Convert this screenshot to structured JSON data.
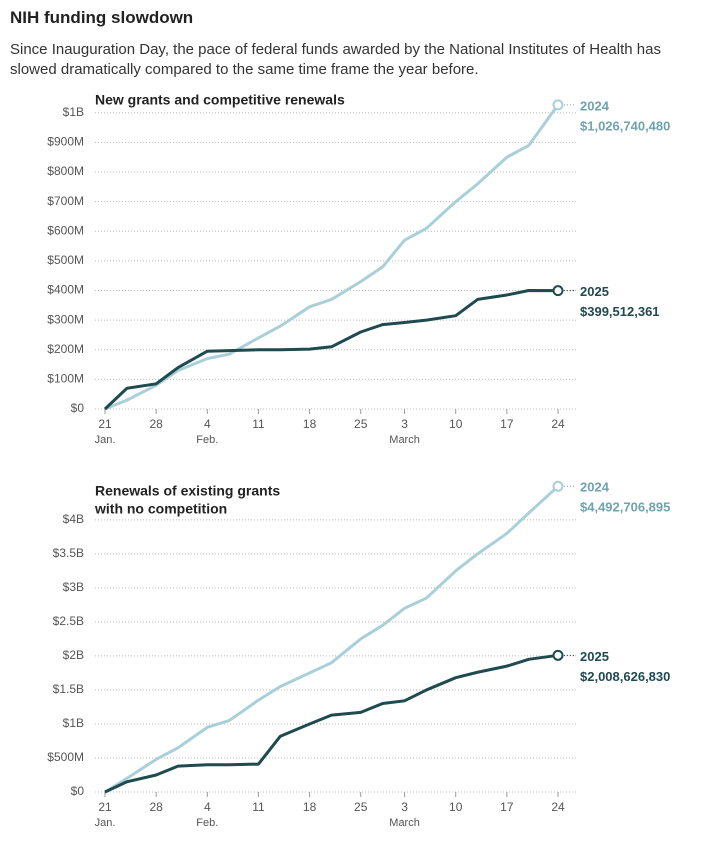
{
  "title": "NIH funding slowdown",
  "subtitle": "Since Inauguration Day, the pace of federal funds awarded by the National Institutes of Health has slowed dramatically compared to the same time frame the year before.",
  "chart_data": [
    {
      "type": "line",
      "title": [
        "New grants and competitive renewals"
      ],
      "x": [
        "Jan 21",
        "Jan 24",
        "Jan 28",
        "Jan 31",
        "Feb 4",
        "Feb 7",
        "Feb 11",
        "Feb 14",
        "Feb 18",
        "Feb 21",
        "Feb 25",
        "Feb 28",
        "Mar 3",
        "Mar 6",
        "Mar 10",
        "Mar 13",
        "Mar 17",
        "Mar 20",
        "Mar 24"
      ],
      "series": [
        {
          "name": "2024",
          "color": "#a9d0d9",
          "label_color": "#6fa3ae",
          "values": [
            0,
            30000000,
            80000000,
            130000000,
            170000000,
            185000000,
            240000000,
            280000000,
            345000000,
            370000000,
            430000000,
            480000000,
            570000000,
            610000000,
            700000000,
            760000000,
            850000000,
            890000000,
            1026740480
          ],
          "value_labels": {
            "18": "$1,026,740,480"
          }
        },
        {
          "name": "2025",
          "color": "#1f4a4f",
          "label_color": "#1f4a4f",
          "values": [
            0,
            70000000,
            85000000,
            140000000,
            195000000,
            197000000,
            200000000,
            200000000,
            202000000,
            210000000,
            260000000,
            285000000,
            292000000,
            300000000,
            315000000,
            370000000,
            385000000,
            400000000,
            399512361
          ],
          "value_labels": {
            "18": "$399,512,361"
          }
        }
      ],
      "ylim": [
        0,
        1050000000
      ],
      "yticks": [
        {
          "value": 0,
          "label": "$0"
        },
        {
          "value": 100000000,
          "label": "$100M"
        },
        {
          "value": 200000000,
          "label": "$200M"
        },
        {
          "value": 300000000,
          "label": "$300M"
        },
        {
          "value": 400000000,
          "label": "$400M"
        },
        {
          "value": 500000000,
          "label": "$500M"
        },
        {
          "value": 600000000,
          "label": "$600M"
        },
        {
          "value": 700000000,
          "label": "$700M"
        },
        {
          "value": 800000000,
          "label": "$800M"
        },
        {
          "value": 900000000,
          "label": "$900M"
        },
        {
          "value": 1000000000,
          "label": "$1B"
        }
      ],
      "xticks": [
        {
          "value": "Jan 21",
          "label": "21"
        },
        {
          "value": "Jan 28",
          "label": "28"
        },
        {
          "value": "Feb 4",
          "label": "4"
        },
        {
          "value": "Feb 11",
          "label": "11"
        },
        {
          "value": "Feb 18",
          "label": "18"
        },
        {
          "value": "Feb 25",
          "label": "25"
        },
        {
          "value": "Mar 3",
          "label": "3"
        },
        {
          "value": "Mar 10",
          "label": "10"
        },
        {
          "value": "Mar 17",
          "label": "17"
        },
        {
          "value": "Mar 24",
          "label": "24"
        }
      ],
      "month_labels": [
        {
          "value": "Jan 21",
          "label": "Jan."
        },
        {
          "value": "Feb 4",
          "label": "Feb."
        },
        {
          "value": "Mar 3",
          "label": "March"
        }
      ],
      "grid": true
    },
    {
      "type": "line",
      "title": [
        "Renewals of existing grants",
        "with no competition"
      ],
      "x": [
        "Jan 21",
        "Jan 24",
        "Jan 28",
        "Jan 31",
        "Feb 4",
        "Feb 7",
        "Feb 11",
        "Feb 14",
        "Feb 18",
        "Feb 21",
        "Feb 25",
        "Feb 28",
        "Mar 3",
        "Mar 6",
        "Mar 10",
        "Mar 13",
        "Mar 17",
        "Mar 20",
        "Mar 24"
      ],
      "series": [
        {
          "name": "2024",
          "color": "#a9d0d9",
          "label_color": "#6fa3ae",
          "values": [
            0,
            200000000,
            480000000,
            650000000,
            950000000,
            1050000000,
            1350000000,
            1550000000,
            1750000000,
            1900000000,
            2250000000,
            2450000000,
            2700000000,
            2850000000,
            3250000000,
            3500000000,
            3800000000,
            4100000000,
            4492706895
          ],
          "value_labels": {
            "18": "$4,492,706,895"
          }
        },
        {
          "name": "2025",
          "color": "#1f4a4f",
          "label_color": "#1f4a4f",
          "values": [
            0,
            150000000,
            250000000,
            380000000,
            400000000,
            400000000,
            410000000,
            820000000,
            1000000000,
            1130000000,
            1170000000,
            1300000000,
            1340000000,
            1500000000,
            1680000000,
            1760000000,
            1850000000,
            1950000000,
            2008626830
          ],
          "value_labels": {
            "18": "$2,008,626,830"
          }
        }
      ],
      "ylim": [
        0,
        4600000000
      ],
      "yticks": [
        {
          "value": 0,
          "label": "$0"
        },
        {
          "value": 500000000,
          "label": "$500M"
        },
        {
          "value": 1000000000,
          "label": "$1B"
        },
        {
          "value": 1500000000,
          "label": "$1.5B"
        },
        {
          "value": 2000000000,
          "label": "$2B"
        },
        {
          "value": 2500000000,
          "label": "$2.5B"
        },
        {
          "value": 3000000000,
          "label": "$3B"
        },
        {
          "value": 3500000000,
          "label": "$3.5B"
        },
        {
          "value": 4000000000,
          "label": "$4B"
        }
      ],
      "xticks": [
        {
          "value": "Jan 21",
          "label": "21"
        },
        {
          "value": "Jan 28",
          "label": "28"
        },
        {
          "value": "Feb 4",
          "label": "4"
        },
        {
          "value": "Feb 11",
          "label": "11"
        },
        {
          "value": "Feb 18",
          "label": "18"
        },
        {
          "value": "Feb 25",
          "label": "25"
        },
        {
          "value": "Mar 3",
          "label": "3"
        },
        {
          "value": "Mar 10",
          "label": "10"
        },
        {
          "value": "Mar 17",
          "label": "17"
        },
        {
          "value": "Mar 24",
          "label": "24"
        }
      ],
      "month_labels": [
        {
          "value": "Jan 21",
          "label": "Jan."
        },
        {
          "value": "Feb 4",
          "label": "Feb."
        },
        {
          "value": "Mar 3",
          "label": "March"
        }
      ],
      "grid": true
    }
  ]
}
